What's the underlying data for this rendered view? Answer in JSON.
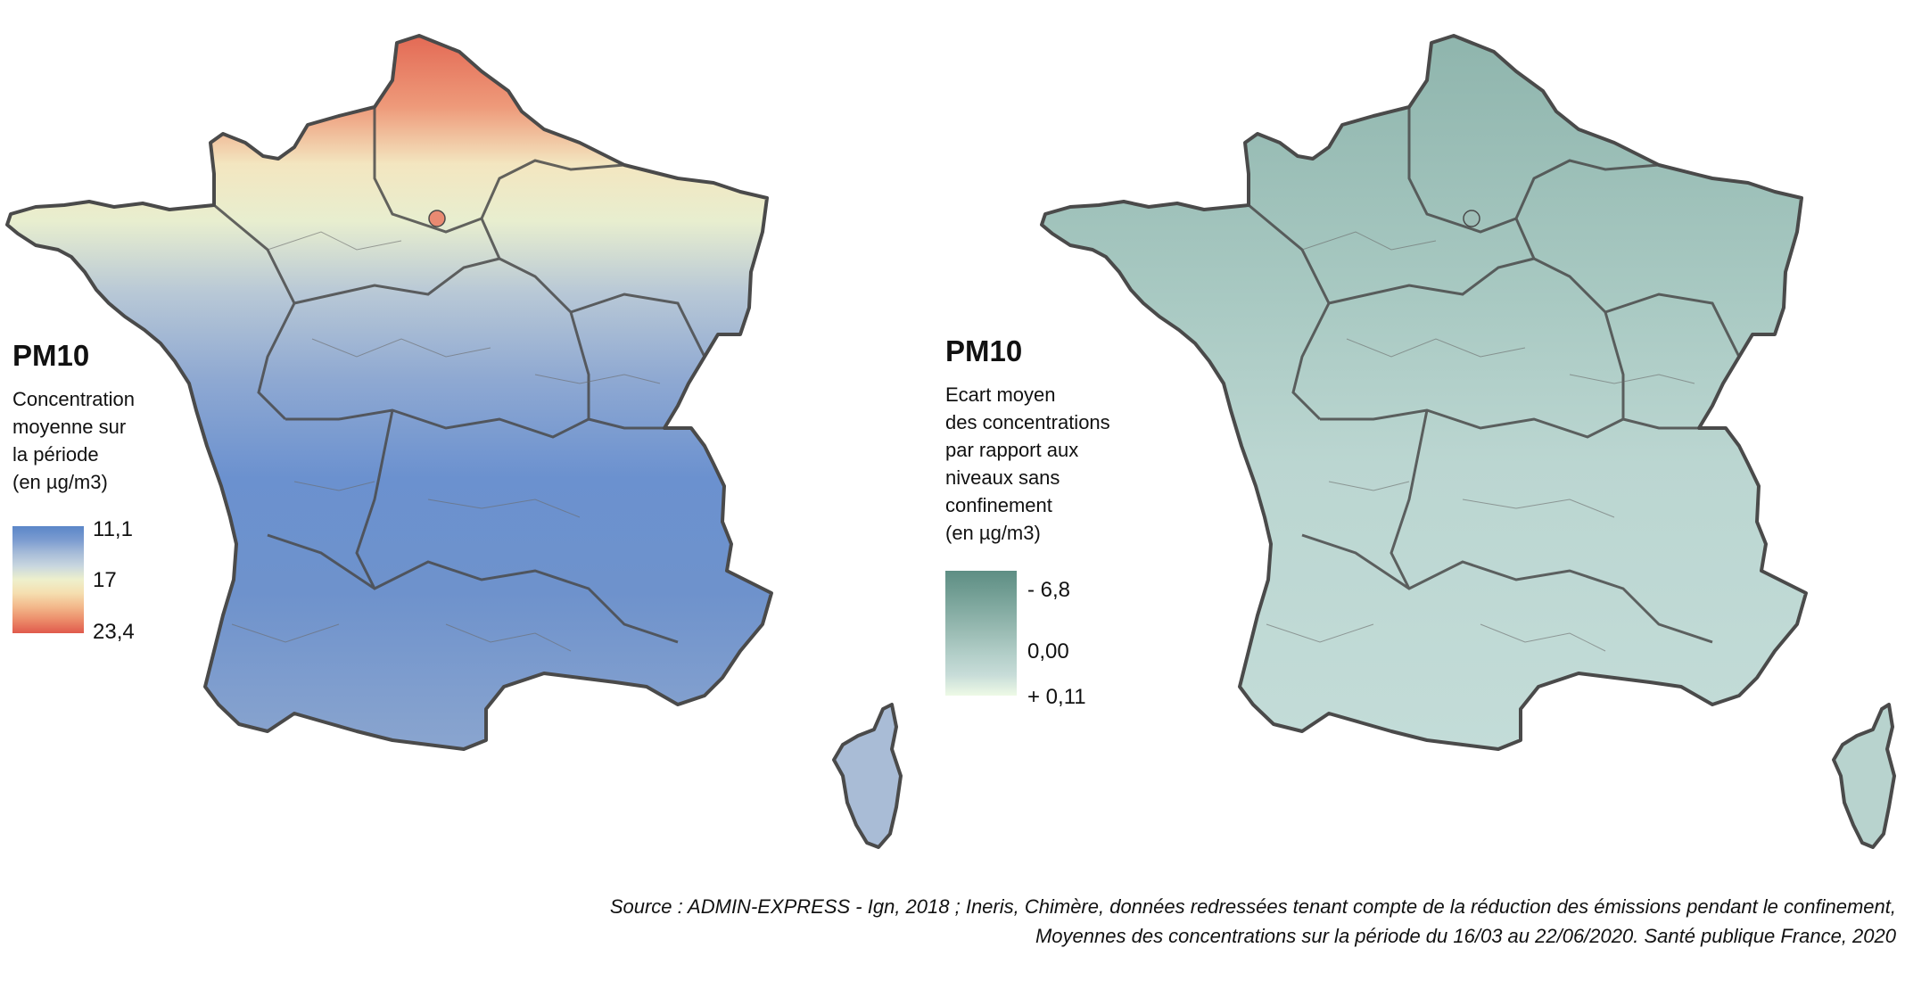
{
  "left_map": {
    "legend": {
      "title": "PM10",
      "subtitle": "Concentration\nmoyenne sur\nla période\n(en µg/m3)",
      "ticks": [
        "11,1",
        "17",
        "23,4"
      ],
      "ramp_colors": [
        "#5b86c8",
        "#7a9bd0",
        "#a6bbd8",
        "#c9d7df",
        "#eef0cc",
        "#f5dfb0",
        "#f3b98c",
        "#ec8c6a",
        "#e05a4c"
      ]
    },
    "fill_colors": {
      "low": "#6b91cf",
      "mid": "#a9bcd6",
      "light": "#e9efcf",
      "high": "#ee9a7a",
      "max": "#e36a55"
    },
    "border_color": "#4a4a4a"
  },
  "right_map": {
    "legend": {
      "title": "PM10",
      "subtitle": "Ecart moyen\ndes concentrations\npar rapport aux\nniveaux sans\nconfinement\n(en µg/m3)",
      "ticks": [
        "- 6,8",
        "0,00",
        "+ 0,11"
      ],
      "ramp_colors": [
        "#5e8e84",
        "#719d93",
        "#86ada4",
        "#9cbdb5",
        "#b2cec8",
        "#c7dcd8",
        "#eefae6"
      ]
    },
    "fill_colors": {
      "dark": "#8fb5ad",
      "mid": "#a7c8c1",
      "light": "#c3dcd8"
    },
    "border_color": "#4a4a4a"
  },
  "source": {
    "line1": "Source : ADMIN-EXPRESS - Ign, 2018 ; Ineris, Chimère, données redressées tenant compte de la réduction des émissions pendant le confinement,",
    "line2": "Moyennes des concentrations sur la période du 16/03 au 22/06/2020. Santé publique France, 2020"
  }
}
